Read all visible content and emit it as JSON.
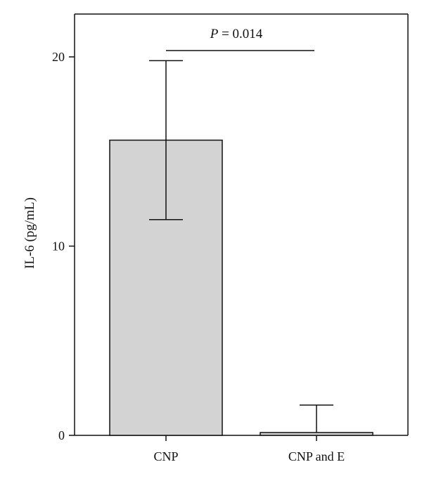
{
  "chart_data": {
    "type": "bar",
    "categories": [
      "CNP",
      "CNP and E"
    ],
    "values": [
      15.6,
      0.15
    ],
    "error_upper": [
      19.8,
      1.6
    ],
    "error_lower": [
      11.4,
      0.15
    ],
    "ylabel": "IL-6 (pg/mL)",
    "xlabel": "",
    "ylim": [
      0,
      22
    ],
    "yticks": [
      0,
      10,
      20
    ],
    "bar_color": "#d3d3d3",
    "grid": false,
    "annotation": {
      "symbol": "P",
      "rest": " = 0.014",
      "between": [
        "CNP",
        "CNP and E"
      ]
    }
  }
}
